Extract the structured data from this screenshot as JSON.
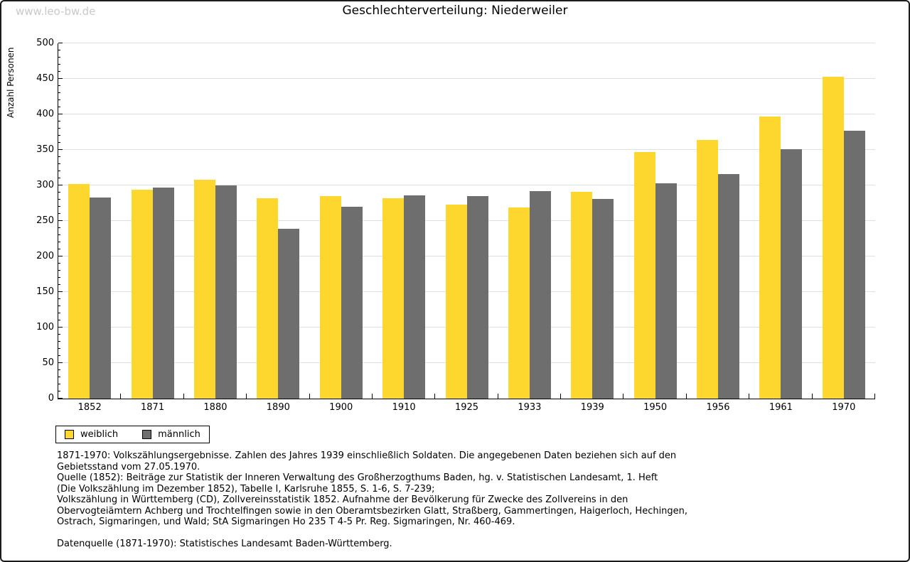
{
  "watermark": "www.leo-bw.de",
  "chart_data": {
    "type": "bar",
    "title": "Geschlechterverteilung: Niederweiler",
    "xlabel": "",
    "ylabel": "Anzahl Personen",
    "ylim": [
      0,
      500
    ],
    "ytick_step": 50,
    "ytick_minor_step": 10,
    "grid": true,
    "legend_position": "below-chart-left",
    "categories": [
      "1852",
      "1871",
      "1880",
      "1890",
      "1900",
      "1910",
      "1925",
      "1933",
      "1939",
      "1950",
      "1956",
      "1961",
      "1970"
    ],
    "series": [
      {
        "name": "weiblich",
        "color": "#FDD62E",
        "values": [
          302,
          294,
          308,
          282,
          285,
          282,
          273,
          269,
          291,
          347,
          364,
          397,
          453
        ]
      },
      {
        "name": "männlich",
        "color": "#6E6E6E",
        "values": [
          283,
          297,
          300,
          239,
          270,
          286,
          285,
          292,
          281,
          303,
          316,
          351,
          377
        ]
      }
    ]
  },
  "footer": {
    "lines": [
      "1871-1970: Volkszählungsergebnisse. Zahlen des Jahres 1939 einschließlich Soldaten. Die angegebenen Daten beziehen sich auf den",
      "Gebietsstand vom 27.05.1970.",
      "Quelle (1852): Beiträge zur Statistik der Inneren Verwaltung des Großherzogthums Baden, hg. v. Statistischen Landesamt, 1. Heft",
      "(Die Volkszählung im Dezember 1852), Tabelle I, Karlsruhe 1855, S. 1-6, S. 7-239;",
      "Volkszählung in Württemberg (CD), Zollvereinsstatistik 1852. Aufnahme der Bevölkerung für Zwecke des Zollvereins in den",
      "Obervogteiämtern Achberg und Trochtelfingen sowie in den Oberamtsbezirken Glatt, Straßberg, Gammertingen, Haigerloch, Hechingen,",
      "Ostrach, Sigmaringen, und Wald; StA Sigmaringen Ho 235 T 4-5 Pr. Reg. Sigmaringen, Nr. 460-469."
    ],
    "datasource": "Datenquelle (1871-1970): Statistisches Landesamt Baden-Württemberg."
  },
  "colors": {
    "frame_border": "#1b1b1b",
    "gridline": "#e0e0e0",
    "axis": "#000000",
    "watermark_text": "#c9c9c9",
    "background": "#ffffff"
  }
}
